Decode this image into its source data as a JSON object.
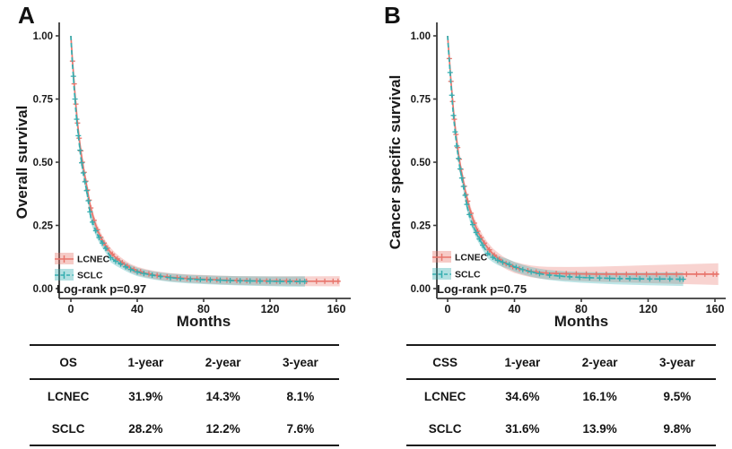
{
  "figure": {
    "panels": [
      {
        "label": "A",
        "y_title": "Overall survival",
        "x_title": "Months",
        "logrank": "Log-rank p=0.97"
      },
      {
        "label": "B",
        "y_title": "Cancer specific survival",
        "x_title": "Months",
        "logrank": "Log-rank p=0.75"
      }
    ],
    "colors": {
      "lcnec_line": "#e8756c",
      "sclc_line": "#35aeb0",
      "axis": "#3a3a3a",
      "text": "#1a1a1a"
    }
  },
  "chart_data": [
    {
      "type": "line",
      "subtype": "kaplan-meier",
      "title": "Overall survival: LCNEC vs SCLC",
      "xlabel": "Months",
      "ylabel": "Overall survival",
      "xlim": [
        0,
        165
      ],
      "ylim": [
        0,
        1
      ],
      "xticks": [
        0,
        40,
        80,
        120,
        160
      ],
      "ytick_labels": [
        "0.00",
        "0.25",
        "0.50",
        "0.75",
        "1.00"
      ],
      "ytick_values": [
        0,
        0.25,
        0.5,
        0.75,
        1.0
      ],
      "grid": false,
      "legend_position": "bottom-left",
      "annotation": "Log-rank p=0.97",
      "series": [
        {
          "name": "LCNEC",
          "color": "#e8756c",
          "band_opacity": 0.32,
          "dash": "solid",
          "band": {
            "h0": 0.008,
            "hs": 0.025,
            "ht": 5e-05
          },
          "x": [
            0,
            0.5,
            1,
            1.5,
            2,
            2.5,
            3,
            3.5,
            4,
            5,
            6,
            7,
            8,
            9,
            10,
            11,
            12,
            14,
            16,
            18,
            20,
            22,
            24,
            27,
            30,
            33,
            36,
            40,
            45,
            50,
            55,
            60,
            70,
            80,
            90,
            100,
            110,
            120,
            130,
            141,
            150,
            162
          ],
          "y": [
            1,
            0.95,
            0.9,
            0.855,
            0.81,
            0.77,
            0.73,
            0.69,
            0.655,
            0.595,
            0.545,
            0.5,
            0.46,
            0.425,
            0.39,
            0.35,
            0.319,
            0.27,
            0.233,
            0.203,
            0.18,
            0.16,
            0.143,
            0.123,
            0.107,
            0.093,
            0.081,
            0.07,
            0.061,
            0.054,
            0.049,
            0.045,
            0.04,
            0.037,
            0.034,
            0.032,
            0.031,
            0.03,
            0.03,
            0.029,
            0.029,
            0.029
          ],
          "censor_x": [
            1,
            2,
            3,
            4,
            5,
            6,
            7,
            8,
            9,
            10,
            11,
            12,
            14,
            16,
            18,
            20,
            22,
            25,
            28,
            31,
            34,
            38,
            42,
            47,
            52,
            58,
            64,
            70,
            76,
            82,
            88,
            94,
            100,
            106,
            112,
            118,
            124,
            130,
            136,
            142,
            148,
            153,
            158,
            161
          ],
          "milestones": {
            "1-year": "31.9%",
            "2-year": "14.3%",
            "3-year": "8.1%"
          }
        },
        {
          "name": "SCLC",
          "color": "#35aeb0",
          "band_opacity": 0.32,
          "dash": "dashed",
          "band": {
            "h0": 0.008,
            "hs": 0.025,
            "ht": 6e-05
          },
          "x": [
            0,
            0.5,
            1,
            1.5,
            2,
            2.5,
            3,
            3.5,
            4,
            5,
            6,
            7,
            8,
            9,
            10,
            11,
            12,
            14,
            16,
            18,
            20,
            22,
            24,
            27,
            30,
            33,
            36,
            40,
            45,
            50,
            55,
            60,
            70,
            80,
            90,
            100,
            110,
            120,
            130,
            141
          ],
          "y": [
            1,
            0.94,
            0.885,
            0.84,
            0.79,
            0.75,
            0.705,
            0.67,
            0.635,
            0.575,
            0.52,
            0.475,
            0.44,
            0.405,
            0.37,
            0.325,
            0.282,
            0.244,
            0.214,
            0.19,
            0.17,
            0.148,
            0.122,
            0.108,
            0.097,
            0.086,
            0.076,
            0.066,
            0.058,
            0.052,
            0.047,
            0.043,
            0.038,
            0.035,
            0.033,
            0.031,
            0.03,
            0.029,
            0.028,
            0.028
          ],
          "censor_x": [
            1.5,
            2.5,
            3.5,
            4.5,
            5.5,
            6.5,
            7.5,
            8.5,
            9.5,
            10.5,
            11.5,
            13,
            15,
            17,
            19,
            21,
            24,
            27,
            30,
            33,
            36,
            40,
            44,
            49,
            54,
            60,
            66,
            72,
            78,
            84,
            90,
            96,
            102,
            108,
            114,
            120,
            126,
            132,
            138,
            141
          ],
          "milestones": {
            "1-year": "28.2%",
            "2-year": "12.2%",
            "3-year": "7.6%"
          }
        }
      ]
    },
    {
      "type": "line",
      "subtype": "kaplan-meier",
      "title": "Cancer specific survival: LCNEC vs SCLC",
      "xlabel": "Months",
      "ylabel": "Cancer specific survival",
      "xlim": [
        0,
        165
      ],
      "ylim": [
        0,
        1
      ],
      "xticks": [
        0,
        40,
        80,
        120,
        160
      ],
      "ytick_labels": [
        "0.00",
        "0.25",
        "0.50",
        "0.75",
        "1.00"
      ],
      "ytick_values": [
        0,
        0.25,
        0.5,
        0.75,
        1.0
      ],
      "grid": false,
      "legend_position": "bottom-left",
      "annotation": "Log-rank p=0.75",
      "series": [
        {
          "name": "LCNEC",
          "color": "#e8756c",
          "band_opacity": 0.32,
          "dash": "solid",
          "band": {
            "h0": 0.008,
            "hs": 0.025,
            "ht": 0.00018
          },
          "x": [
            0,
            0.5,
            1,
            1.5,
            2,
            2.5,
            3,
            3.5,
            4,
            5,
            6,
            7,
            8,
            9,
            10,
            11,
            12,
            14,
            16,
            18,
            20,
            22,
            24,
            27,
            30,
            33,
            36,
            40,
            45,
            50,
            55,
            60,
            70,
            80,
            90,
            100,
            110,
            120,
            130,
            141,
            150,
            162
          ],
          "y": [
            1,
            0.955,
            0.91,
            0.865,
            0.82,
            0.78,
            0.74,
            0.705,
            0.67,
            0.61,
            0.558,
            0.512,
            0.472,
            0.438,
            0.405,
            0.372,
            0.346,
            0.298,
            0.259,
            0.227,
            0.202,
            0.18,
            0.161,
            0.138,
            0.121,
            0.106,
            0.095,
            0.084,
            0.075,
            0.068,
            0.064,
            0.061,
            0.059,
            0.058,
            0.057,
            0.057,
            0.057,
            0.057,
            0.057,
            0.057,
            0.057,
            0.057
          ],
          "censor_x": [
            1,
            2,
            3,
            4,
            5,
            6,
            7,
            8,
            9,
            10,
            11,
            12,
            14,
            16,
            18,
            20,
            22,
            25,
            28,
            31,
            35,
            39,
            43,
            48,
            53,
            59,
            65,
            71,
            77,
            83,
            89,
            95,
            101,
            107,
            113,
            119,
            125,
            131,
            137,
            143,
            149,
            154,
            159,
            161
          ],
          "milestones": {
            "1-year": "34.6%",
            "2-year": "16.1%",
            "3-year": "9.5%"
          }
        },
        {
          "name": "SCLC",
          "color": "#35aeb0",
          "band_opacity": 0.32,
          "dash": "dashed",
          "band": {
            "h0": 0.008,
            "hs": 0.025,
            "ht": 0.0001
          },
          "x": [
            0,
            0.5,
            1,
            1.5,
            2,
            2.5,
            3,
            3.5,
            4,
            5,
            6,
            7,
            8,
            9,
            10,
            11,
            12,
            14,
            16,
            18,
            20,
            22,
            24,
            27,
            30,
            33,
            36,
            40,
            45,
            50,
            55,
            60,
            70,
            80,
            90,
            100,
            110,
            120,
            130,
            141
          ],
          "y": [
            1,
            0.95,
            0.9,
            0.855,
            0.81,
            0.765,
            0.72,
            0.685,
            0.65,
            0.59,
            0.538,
            0.492,
            0.455,
            0.42,
            0.388,
            0.35,
            0.316,
            0.27,
            0.236,
            0.208,
            0.184,
            0.16,
            0.139,
            0.124,
            0.112,
            0.104,
            0.098,
            0.086,
            0.075,
            0.066,
            0.059,
            0.054,
            0.048,
            0.044,
            0.042,
            0.04,
            0.039,
            0.038,
            0.038,
            0.037
          ],
          "censor_x": [
            1.5,
            2.5,
            3.5,
            4.5,
            5.5,
            6.5,
            7.5,
            8.5,
            9.5,
            10.5,
            11.5,
            13,
            15,
            17,
            19,
            21,
            24,
            27,
            30,
            33,
            37,
            41,
            45,
            50,
            55,
            61,
            67,
            73,
            79,
            85,
            91,
            97,
            103,
            109,
            115,
            121,
            127,
            133,
            139,
            141
          ],
          "milestones": {
            "1-year": "31.6%",
            "2-year": "13.9%",
            "3-year": "9.8%"
          }
        }
      ]
    }
  ],
  "tables": [
    {
      "header": [
        "OS",
        "1-year",
        "2-year",
        "3-year"
      ],
      "rows": [
        [
          "LCNEC",
          "31.9%",
          "14.3%",
          "8.1%"
        ],
        [
          "SCLC",
          "28.2%",
          "12.2%",
          "7.6%"
        ]
      ]
    },
    {
      "header": [
        "CSS",
        "1-year",
        "2-year",
        "3-year"
      ],
      "rows": [
        [
          "LCNEC",
          "34.6%",
          "16.1%",
          "9.5%"
        ],
        [
          "SCLC",
          "31.6%",
          "13.9%",
          "9.8%"
        ]
      ]
    }
  ]
}
